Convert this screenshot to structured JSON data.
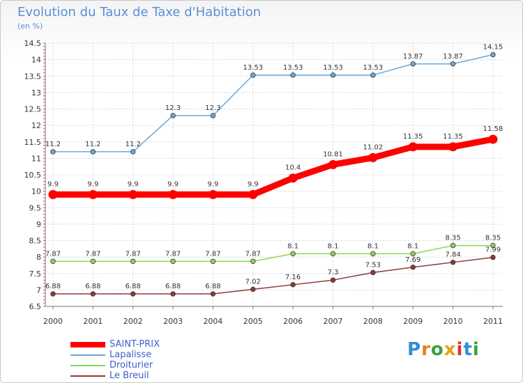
{
  "header": {
    "title": "Evolution du Taux de Taxe d'Habitation",
    "subtitle": "(en %)"
  },
  "logo": {
    "text": "Proxiti",
    "colors": [
      "#2f8fd8",
      "#ef7d1a",
      "#3aa33a",
      "#e7a013",
      "#d9362b",
      "#2f8fd8",
      "#3aa33a"
    ]
  },
  "chart_data": {
    "type": "line",
    "title": "Evolution du Taux de Taxe d'Habitation",
    "ylabel": "(en %)",
    "xlabel": "",
    "x": [
      "2000",
      "2001",
      "2002",
      "2003",
      "2004",
      "2005",
      "2006",
      "2007",
      "2008",
      "2009",
      "2010",
      "2011"
    ],
    "ylim": [
      6.5,
      14.5
    ],
    "yticks": [
      "6.5",
      "7",
      "7.5",
      "8",
      "8.5",
      "9",
      "9.5",
      "10",
      "10.5",
      "11",
      "11.5",
      "12",
      "12.5",
      "13",
      "13.5",
      "14",
      "14.5"
    ],
    "grid": true,
    "legend_position": "bottom-left",
    "series": [
      {
        "name": "SAINT-PRIX",
        "color": "#ff0000",
        "emphasis": true,
        "values": [
          9.9,
          9.9,
          9.9,
          9.9,
          9.9,
          9.9,
          10.4,
          10.81,
          11.02,
          11.35,
          11.35,
          11.58
        ],
        "labels": [
          "9.9",
          "9.9",
          "9.9",
          "9.9",
          "9.9",
          "9.9",
          "10.4",
          "10.81",
          "11.02",
          "11.35",
          "11.35",
          "11.58"
        ]
      },
      {
        "name": "Lapalisse",
        "color": "#6aa8d8",
        "values": [
          11.2,
          11.2,
          11.2,
          12.3,
          12.3,
          13.53,
          13.53,
          13.53,
          13.53,
          13.87,
          13.87,
          14.15
        ],
        "labels": [
          "11.2",
          "11.2",
          "11.2",
          "12.3",
          "12.3",
          "13.53",
          "13.53",
          "13.53",
          "13.53",
          "13.87",
          "13.87",
          "14.15"
        ]
      },
      {
        "name": "Droiturier",
        "color": "#8fd45a",
        "values": [
          7.87,
          7.87,
          7.87,
          7.87,
          7.87,
          7.87,
          8.1,
          8.1,
          8.1,
          8.1,
          8.35,
          8.35
        ],
        "labels": [
          "7.87",
          "7.87",
          "7.87",
          "7.87",
          "7.87",
          "7.87",
          "8.1",
          "8.1",
          "8.1",
          "8.1",
          "8.35",
          "8.35"
        ]
      },
      {
        "name": "Le Breuil",
        "color": "#8b3a3a",
        "values": [
          6.88,
          6.88,
          6.88,
          6.88,
          6.88,
          7.02,
          7.16,
          7.3,
          7.53,
          7.69,
          7.84,
          7.99
        ],
        "labels": [
          "6.88",
          "6.88",
          "6.88",
          "6.88",
          "6.88",
          "7.02",
          "7.16",
          "7.3",
          "7.53",
          "7.69",
          "7.84",
          "7.99"
        ]
      }
    ]
  }
}
